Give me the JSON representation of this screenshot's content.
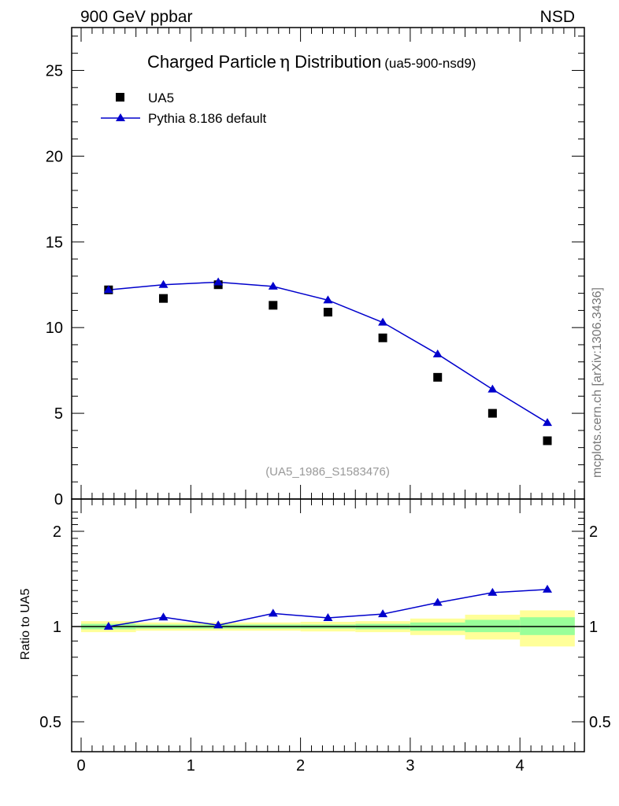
{
  "header": {
    "left": "900 GeV ppbar",
    "right": "NSD"
  },
  "title": {
    "main_prefix": "Charged Particle",
    "main_symbol": "η",
    "main_suffix": " Distribution",
    "analysis_tag": "(ua5-900-nsd9)"
  },
  "legend": {
    "data_label": "UA5",
    "mc_label": "Pythia 8.186 default"
  },
  "watermark": {
    "ref": "(UA5_1986_S1583476)",
    "side": "mcplots.cern.ch [arXiv:1306.3436]"
  },
  "ratio_axis": {
    "label": "Ratio to UA5"
  },
  "colors": {
    "mc": "#0000cc",
    "data": "#000000",
    "band_inner": "#99ff99",
    "band_outer": "#ffff99"
  },
  "chart_data": [
    {
      "type": "scatter",
      "panel": "main",
      "xlim": [
        -0.09,
        4.5
      ],
      "ylim": [
        0,
        27.5
      ],
      "yticks": [
        0,
        5,
        10,
        15,
        20,
        25
      ],
      "ytick_labels": [
        "0",
        "5",
        "10",
        "15",
        "20",
        "25"
      ],
      "series": [
        {
          "name": "UA5",
          "marker": "square",
          "x": [
            0.25,
            0.75,
            1.25,
            1.75,
            2.25,
            2.75,
            3.25,
            3.75,
            4.25
          ],
          "y": [
            12.2,
            11.7,
            12.5,
            11.3,
            10.9,
            9.4,
            7.1,
            5.0,
            3.4
          ]
        },
        {
          "name": "Pythia 8.186 default",
          "marker": "triangle",
          "x": [
            0.25,
            0.75,
            1.25,
            1.75,
            2.25,
            2.75,
            3.25,
            3.75,
            4.25
          ],
          "y": [
            12.2,
            12.5,
            12.65,
            12.4,
            11.6,
            10.3,
            8.45,
            6.4,
            4.45
          ]
        }
      ]
    },
    {
      "type": "line",
      "panel": "ratio",
      "xlim": [
        -0.09,
        4.5
      ],
      "ylim": [
        0.45,
        2.35
      ],
      "log_y": true,
      "yticks": [
        0.5,
        1,
        2
      ],
      "ytick_labels": [
        "0.5",
        "1",
        "2"
      ],
      "xticks": [
        0,
        1,
        2,
        3,
        4
      ],
      "xtick_labels": [
        "0",
        "1",
        "2",
        "3",
        "4"
      ],
      "bins": [
        [
          0,
          0.5
        ],
        [
          0.5,
          1
        ],
        [
          1,
          1.5
        ],
        [
          1.5,
          2
        ],
        [
          2,
          2.5
        ],
        [
          2.5,
          3
        ],
        [
          3,
          3.5
        ],
        [
          3.5,
          4
        ],
        [
          4,
          4.5
        ]
      ],
      "band_inner": [
        [
          0.98,
          1.02
        ],
        [
          0.985,
          1.015
        ],
        [
          0.985,
          1.015
        ],
        [
          0.985,
          1.015
        ],
        [
          0.985,
          1.015
        ],
        [
          0.98,
          1.02
        ],
        [
          0.97,
          1.03
        ],
        [
          0.96,
          1.05
        ],
        [
          0.94,
          1.07
        ]
      ],
      "band_outer": [
        [
          0.96,
          1.04
        ],
        [
          0.97,
          1.03
        ],
        [
          0.97,
          1.03
        ],
        [
          0.97,
          1.03
        ],
        [
          0.965,
          1.035
        ],
        [
          0.96,
          1.04
        ],
        [
          0.94,
          1.06
        ],
        [
          0.91,
          1.09
        ],
        [
          0.865,
          1.125
        ]
      ],
      "series": [
        {
          "name": "Pythia 8.186 default",
          "x": [
            0.25,
            0.75,
            1.25,
            1.75,
            2.25,
            2.75,
            3.25,
            3.75,
            4.25
          ],
          "y": [
            1.0,
            1.07,
            1.01,
            1.1,
            1.065,
            1.095,
            1.19,
            1.28,
            1.31
          ]
        }
      ]
    }
  ]
}
